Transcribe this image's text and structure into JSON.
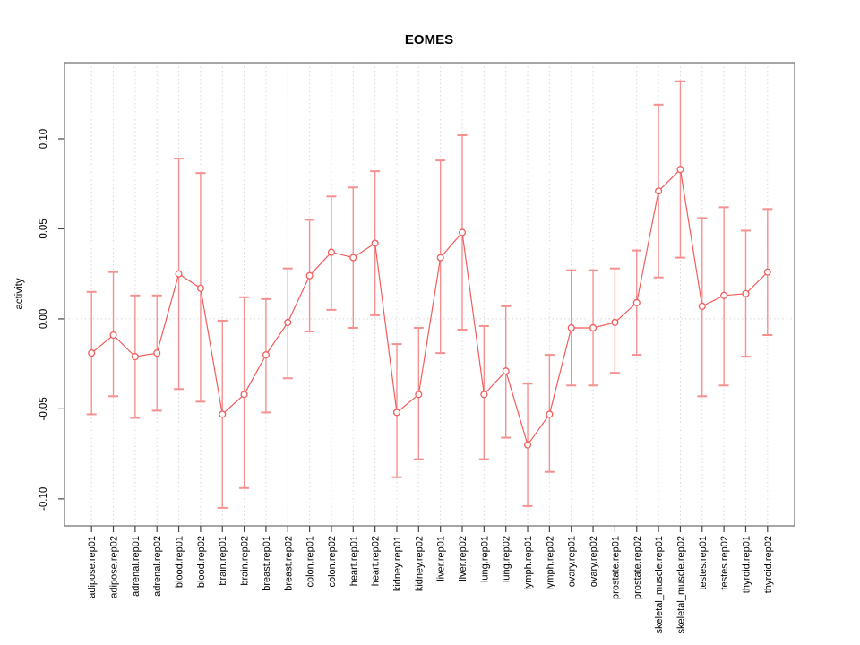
{
  "chart_data": {
    "type": "line",
    "title": "EOMES",
    "xlabel": "",
    "ylabel": "activity",
    "legend": "none",
    "grid": "dotted vertical gridline at every category; dotted horizontal line at y=0",
    "marker": "open-circle",
    "error_bars": true,
    "ylim": [
      -0.115,
      0.1423
    ],
    "y_ticks": [
      -0.1,
      -0.05,
      0.0,
      0.05,
      0.1
    ],
    "y_tick_labels": [
      "-0.10",
      "-0.05",
      "0.00",
      "0.05",
      "0.10"
    ],
    "categories": [
      "adipose.rep01",
      "adipose.rep02",
      "adrenal.rep01",
      "adrenal.rep02",
      "blood.rep01",
      "blood.rep02",
      "brain.rep01",
      "brain.rep02",
      "breast.rep01",
      "breast.rep02",
      "colon.rep01",
      "colon.rep02",
      "heart.rep01",
      "heart.rep02",
      "kidney.rep01",
      "kidney.rep02",
      "liver.rep01",
      "liver.rep02",
      "lung.rep01",
      "lung.rep02",
      "lymph.rep01",
      "lymph.rep02",
      "ovary.rep01",
      "ovary.rep02",
      "prostate.rep01",
      "prostate.rep02",
      "skeletal_muscle.rep01",
      "skeletal_muscle.rep02",
      "testes.rep01",
      "testes.rep02",
      "thyroid.rep01",
      "thyroid.rep02"
    ],
    "series": [
      {
        "name": "activity",
        "values": [
          -0.019,
          -0.009,
          -0.021,
          -0.019,
          0.025,
          0.017,
          -0.053,
          -0.042,
          -0.02,
          -0.002,
          0.024,
          0.037,
          0.034,
          0.042,
          -0.052,
          -0.042,
          0.034,
          0.048,
          -0.042,
          -0.029,
          -0.07,
          -0.053,
          -0.005,
          -0.005,
          -0.002,
          0.009,
          0.071,
          0.083,
          0.007,
          0.013,
          0.014,
          0.026
        ]
      }
    ],
    "error_low": [
      -0.053,
      -0.043,
      -0.055,
      -0.051,
      -0.039,
      -0.046,
      -0.105,
      -0.094,
      -0.052,
      -0.033,
      -0.007,
      0.005,
      -0.005,
      0.002,
      -0.088,
      -0.078,
      -0.019,
      -0.006,
      -0.078,
      -0.066,
      -0.104,
      -0.085,
      -0.037,
      -0.037,
      -0.03,
      -0.02,
      0.023,
      0.034,
      -0.043,
      -0.037,
      -0.021,
      -0.009
    ],
    "error_high": [
      0.015,
      0.026,
      0.013,
      0.013,
      0.089,
      0.081,
      -0.001,
      0.012,
      0.011,
      0.028,
      0.055,
      0.068,
      0.073,
      0.082,
      -0.014,
      -0.005,
      0.088,
      0.102,
      -0.004,
      0.007,
      -0.036,
      -0.02,
      0.027,
      0.027,
      0.028,
      0.038,
      0.119,
      0.132,
      0.056,
      0.062,
      0.049,
      0.061
    ],
    "colors": {
      "line": "#f25c5c",
      "marker": "#f25c5c",
      "error_bar": "#f59090",
      "grid": "#d8d8d8",
      "axis": "#888888",
      "tick": "#444444",
      "text": "#000000"
    }
  }
}
